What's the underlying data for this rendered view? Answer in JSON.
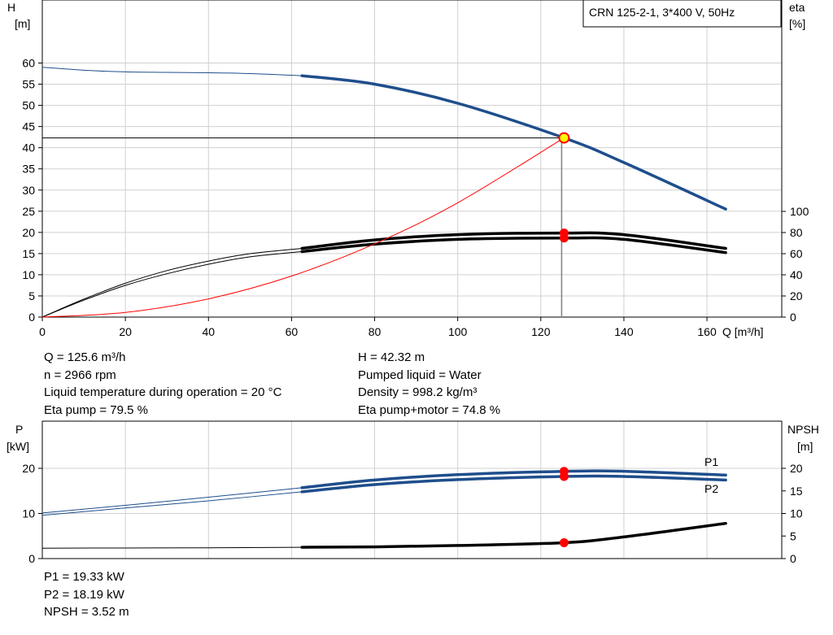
{
  "colors": {
    "head": "#1f4e8c",
    "eta": "#000000",
    "system": "#ff0000",
    "op_point": "#ff0000",
    "op_point_fill": "#ffff00",
    "grid": "#d0d0d0"
  },
  "chart_data": [
    {
      "type": "line",
      "legend_box": "CRN 125-2-1, 3*400 V, 50Hz",
      "x_axis": {
        "label": "Q [m³/h]",
        "range": [
          0,
          178
        ],
        "ticks": [
          0,
          20,
          40,
          60,
          80,
          100,
          120,
          140,
          160
        ]
      },
      "y_left": {
        "label_line1": "H",
        "label_line2": "[m]",
        "range": [
          0,
          60
        ],
        "ticks": [
          0,
          5,
          10,
          15,
          20,
          25,
          30,
          35,
          40,
          45,
          50,
          55,
          60
        ]
      },
      "y_right": {
        "label_line1": "eta",
        "label_line2": "[%]",
        "range": [
          0,
          100
        ],
        "ticks": [
          0,
          20,
          40,
          60,
          80,
          100
        ]
      },
      "grid": true,
      "series": [
        {
          "axis": "left",
          "style": "thin",
          "x": [
            0,
            10,
            20,
            30,
            40,
            50,
            62.5
          ],
          "y": [
            59,
            58.3,
            57.9,
            57.8,
            57.7,
            57.5,
            57
          ]
        },
        {
          "axis": "left",
          "style": "thick",
          "x": [
            62.5,
            80,
            100,
            125.6,
            140,
            164.5
          ],
          "y": [
            57,
            55,
            50.5,
            42.32,
            36.5,
            25.5
          ]
        },
        {
          "axis": "right",
          "style": "thin",
          "x": [
            0,
            10,
            20,
            30,
            40,
            50,
            62.5
          ],
          "y": [
            0,
            17,
            32,
            44,
            53,
            60,
            65
          ]
        },
        {
          "axis": "right",
          "style": "thick",
          "x": [
            62.5,
            80,
            100,
            125.6,
            140,
            164.5
          ],
          "y": [
            65,
            73,
            78,
            79.5,
            78,
            65
          ]
        },
        {
          "axis": "right",
          "style": "thin",
          "x": [
            0,
            10,
            20,
            30,
            40,
            50,
            62.5
          ],
          "y": [
            0,
            16,
            30,
            41,
            50,
            57,
            62
          ]
        },
        {
          "axis": "right",
          "style": "thick",
          "x": [
            62.5,
            80,
            100,
            125.6,
            140,
            164.5
          ],
          "y": [
            62,
            69,
            73.5,
            74.8,
            73.5,
            61
          ]
        },
        {
          "axis": "left",
          "style": "system",
          "x": [
            0,
            20,
            40,
            60,
            80,
            100,
            125.6
          ],
          "y": [
            0,
            1.1,
            4.3,
            9.7,
            17.3,
            27,
            42.32
          ]
        }
      ],
      "operating_point": {
        "x": 125.6,
        "y": 42.32,
        "eta_pump": 79.5,
        "eta_total": 74.8
      }
    },
    {
      "type": "line",
      "x_axis": {
        "range": [
          0,
          178
        ],
        "ticks": [
          0,
          20,
          40,
          60,
          80,
          100,
          120,
          140,
          160
        ]
      },
      "y_left": {
        "label_line1": "P",
        "label_line2": "[kW]",
        "range": [
          0,
          25
        ],
        "ticks": [
          0,
          10,
          20
        ]
      },
      "y_right": {
        "label_line1": "NPSH",
        "label_line2": "[m]",
        "range": [
          0,
          25
        ],
        "ticks": [
          0,
          5,
          10,
          15,
          20
        ]
      },
      "grid": true,
      "series": [
        {
          "name": "P1",
          "axis": "left",
          "style": "thin",
          "x": [
            0,
            20,
            40,
            62.5
          ],
          "y": [
            10.1,
            11.8,
            13.6,
            15.7
          ]
        },
        {
          "name": "P1",
          "axis": "left",
          "style": "thick",
          "x": [
            62.5,
            80,
            100,
            125.6,
            140,
            164.5
          ],
          "y": [
            15.7,
            17.4,
            18.6,
            19.33,
            19.35,
            18.5
          ]
        },
        {
          "name": "P2",
          "axis": "left",
          "style": "thin",
          "x": [
            0,
            20,
            40,
            62.5
          ],
          "y": [
            9.6,
            11.2,
            12.8,
            14.8
          ]
        },
        {
          "name": "P2",
          "axis": "left",
          "style": "thick",
          "x": [
            62.5,
            80,
            100,
            125.6,
            140,
            164.5
          ],
          "y": [
            14.8,
            16.4,
            17.5,
            18.19,
            18.2,
            17.4
          ]
        },
        {
          "name": "NPSH",
          "axis": "right",
          "style": "thin",
          "x": [
            0,
            20,
            40,
            62.5
          ],
          "y": [
            2.3,
            2.35,
            2.4,
            2.5
          ]
        },
        {
          "name": "NPSH",
          "axis": "right",
          "style": "thick",
          "x": [
            62.5,
            80,
            100,
            125.6,
            140,
            164.5
          ],
          "y": [
            2.5,
            2.6,
            2.9,
            3.52,
            4.8,
            7.8
          ]
        }
      ],
      "operating_point": {
        "x": 125.6,
        "p1": 19.33,
        "p2": 18.19,
        "npsh": 3.52
      }
    }
  ],
  "info_top": {
    "left": [
      "Q = 125.6 m³/h",
      "n = 2966 rpm",
      "Liquid temperature during operation = 20 °C",
      "Eta pump = 79.5 %"
    ],
    "right": [
      "H = 42.32 m",
      "Pumped liquid = Water",
      "Density = 998.2 kg/m³",
      "Eta pump+motor = 74.8 %"
    ]
  },
  "info_bottom": [
    "P1 = 19.33 kW",
    "P2 = 18.19 kW",
    "NPSH = 3.52 m"
  ]
}
